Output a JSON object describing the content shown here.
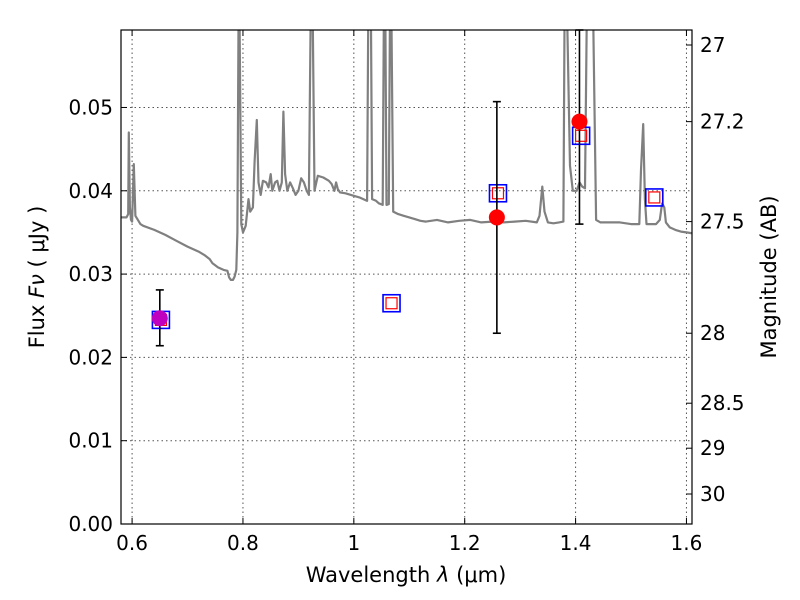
{
  "chart_data": {
    "type": "scatter",
    "xlabel": "Wavelength",
    "xlabel_symbol": "λ",
    "xlabel_unit": "(μm)",
    "ylabel": "Flux",
    "ylabel_symbol": "Fν",
    "ylabel_unit": "( μJy )",
    "y2label": "Magnitude (AB)",
    "xlim": [
      0.58,
      1.61
    ],
    "ylim": [
      0.0,
      0.0593
    ],
    "x_ticks": [
      0.6,
      0.8,
      1.0,
      1.2,
      1.4,
      1.6
    ],
    "x_tick_labels": [
      "0.6",
      "0.8",
      "1",
      "1.2",
      "1.4",
      "1.6"
    ],
    "y_ticks": [
      0.0,
      0.01,
      0.02,
      0.03,
      0.04,
      0.05
    ],
    "y_tick_labels": [
      "0.00",
      "0.01",
      "0.02",
      "0.03",
      "0.04",
      "0.05"
    ],
    "y2_ticks": [
      {
        "flux": 0.0575,
        "label": "27"
      },
      {
        "flux": 0.0483,
        "label": "27.2"
      },
      {
        "flux": 0.0363,
        "label": "27.5"
      },
      {
        "flux": 0.0229,
        "label": "28"
      },
      {
        "flux": 0.0145,
        "label": "28.5"
      },
      {
        "flux": 0.0091,
        "label": "29"
      },
      {
        "flux": 0.0036,
        "label": "30"
      }
    ],
    "grid": true,
    "colors": {
      "model": "#808080",
      "observed": "#ff0000",
      "model_box_outer": "#0000ff",
      "model_box_inner": "#ff0000",
      "combined_marker": "#bf00bf",
      "errorbar": "#000000"
    },
    "series": [
      {
        "type": "line",
        "values": [
          [
            0.58,
            0.0368
          ],
          [
            0.59,
            0.0368
          ],
          [
            0.593,
            0.0372
          ],
          [
            0.594,
            0.047
          ],
          [
            0.596,
            0.038
          ],
          [
            0.598,
            0.0365
          ],
          [
            0.6,
            0.0363
          ],
          [
            0.603,
            0.0432
          ],
          [
            0.606,
            0.037
          ],
          [
            0.615,
            0.036
          ],
          [
            0.62,
            0.0358
          ],
          [
            0.64,
            0.0353
          ],
          [
            0.66,
            0.0347
          ],
          [
            0.68,
            0.034
          ],
          [
            0.7,
            0.0333
          ],
          [
            0.72,
            0.0327
          ],
          [
            0.73,
            0.0323
          ],
          [
            0.74,
            0.0318
          ],
          [
            0.745,
            0.0313
          ],
          [
            0.755,
            0.0308
          ],
          [
            0.765,
            0.0305
          ],
          [
            0.772,
            0.0304
          ],
          [
            0.775,
            0.0296
          ],
          [
            0.778,
            0.0293
          ],
          [
            0.782,
            0.0293
          ],
          [
            0.785,
            0.0297
          ],
          [
            0.788,
            0.0305
          ],
          [
            0.79,
            0.035
          ],
          [
            0.792,
            0.06
          ],
          [
            0.794,
            0.06
          ],
          [
            0.797,
            0.036
          ],
          [
            0.8,
            0.035
          ],
          [
            0.805,
            0.0358
          ],
          [
            0.81,
            0.039
          ],
          [
            0.813,
            0.0375
          ],
          [
            0.818,
            0.038
          ],
          [
            0.821,
            0.0435
          ],
          [
            0.825,
            0.0485
          ],
          [
            0.828,
            0.041
          ],
          [
            0.832,
            0.0395
          ],
          [
            0.836,
            0.0412
          ],
          [
            0.842,
            0.041
          ],
          [
            0.846,
            0.0404
          ],
          [
            0.85,
            0.042
          ],
          [
            0.853,
            0.04
          ],
          [
            0.858,
            0.041
          ],
          [
            0.862,
            0.0412
          ],
          [
            0.866,
            0.04
          ],
          [
            0.87,
            0.041
          ],
          [
            0.873,
            0.0495
          ],
          [
            0.876,
            0.042
          ],
          [
            0.88,
            0.04
          ],
          [
            0.885,
            0.041
          ],
          [
            0.89,
            0.0403
          ],
          [
            0.895,
            0.0395
          ],
          [
            0.9,
            0.04
          ],
          [
            0.905,
            0.0415
          ],
          [
            0.91,
            0.041
          ],
          [
            0.915,
            0.04
          ],
          [
            0.919,
            0.0395
          ],
          [
            0.922,
            0.06
          ],
          [
            0.926,
            0.06
          ],
          [
            0.929,
            0.04
          ],
          [
            0.935,
            0.0418
          ],
          [
            0.945,
            0.0416
          ],
          [
            0.955,
            0.0412
          ],
          [
            0.96,
            0.0408
          ],
          [
            0.965,
            0.04
          ],
          [
            0.968,
            0.041
          ],
          [
            0.971,
            0.0402
          ],
          [
            0.975,
            0.0398
          ],
          [
            0.985,
            0.0397
          ],
          [
            1.0,
            0.0394
          ],
          [
            1.01,
            0.0392
          ],
          [
            1.02,
            0.0389
          ],
          [
            1.024,
            0.0388
          ],
          [
            1.026,
            0.06
          ],
          [
            1.031,
            0.06
          ],
          [
            1.033,
            0.039
          ],
          [
            1.04,
            0.0388
          ],
          [
            1.045,
            0.0385
          ],
          [
            1.052,
            0.0383
          ],
          [
            1.054,
            0.06
          ],
          [
            1.057,
            0.06
          ],
          [
            1.059,
            0.0383
          ],
          [
            1.063,
            0.0384
          ],
          [
            1.065,
            0.06
          ],
          [
            1.068,
            0.06
          ],
          [
            1.071,
            0.0375
          ],
          [
            1.08,
            0.0372
          ],
          [
            1.09,
            0.037
          ],
          [
            1.1,
            0.0368
          ],
          [
            1.11,
            0.0366
          ],
          [
            1.12,
            0.0364
          ],
          [
            1.13,
            0.0363
          ],
          [
            1.15,
            0.0365
          ],
          [
            1.17,
            0.0362
          ],
          [
            1.19,
            0.0364
          ],
          [
            1.21,
            0.0365
          ],
          [
            1.23,
            0.0362
          ],
          [
            1.25,
            0.0363
          ],
          [
            1.27,
            0.0362
          ],
          [
            1.29,
            0.0363
          ],
          [
            1.31,
            0.0364
          ],
          [
            1.33,
            0.0362
          ],
          [
            1.335,
            0.037
          ],
          [
            1.34,
            0.0405
          ],
          [
            1.344,
            0.0375
          ],
          [
            1.35,
            0.0362
          ],
          [
            1.36,
            0.0361
          ],
          [
            1.37,
            0.0362
          ],
          [
            1.378,
            0.0363
          ],
          [
            1.38,
            0.06
          ],
          [
            1.385,
            0.06
          ],
          [
            1.39,
            0.043
          ],
          [
            1.395,
            0.04
          ],
          [
            1.402,
            0.04
          ],
          [
            1.407,
            0.041
          ],
          [
            1.412,
            0.0405
          ],
          [
            1.417,
            0.0403
          ],
          [
            1.42,
            0.06
          ],
          [
            1.432,
            0.06
          ],
          [
            1.437,
            0.0365
          ],
          [
            1.445,
            0.0362
          ],
          [
            1.46,
            0.0362
          ],
          [
            1.48,
            0.0362
          ],
          [
            1.5,
            0.036
          ],
          [
            1.515,
            0.036
          ],
          [
            1.518,
            0.0425
          ],
          [
            1.522,
            0.048
          ],
          [
            1.525,
            0.039
          ],
          [
            1.528,
            0.036
          ],
          [
            1.535,
            0.036
          ],
          [
            1.545,
            0.036
          ],
          [
            1.552,
            0.0365
          ],
          [
            1.556,
            0.0385
          ],
          [
            1.56,
            0.038
          ],
          [
            1.563,
            0.0362
          ],
          [
            1.57,
            0.0356
          ],
          [
            1.58,
            0.0353
          ],
          [
            1.59,
            0.0351
          ],
          [
            1.6,
            0.035
          ],
          [
            1.61,
            0.0349
          ]
        ]
      },
      {
        "type": "errorbar",
        "values": [
          {
            "x": 0.65,
            "y": 0.0247,
            "ylow": 0.0214,
            "yhigh": 0.0281
          },
          {
            "x": 1.258,
            "y": 0.0368,
            "ylow": 0.0229,
            "yhigh": 0.0507
          },
          {
            "x": 1.407,
            "y": 0.0483,
            "ylow": 0.036,
            "yhigh": 0.0593
          }
        ]
      },
      {
        "type": "scatter",
        "marker": "square",
        "values": [
          {
            "x": 0.652,
            "y": 0.0245
          },
          {
            "x": 1.068,
            "y": 0.0265
          },
          {
            "x": 1.26,
            "y": 0.0397
          },
          {
            "x": 1.41,
            "y": 0.0466
          },
          {
            "x": 1.542,
            "y": 0.0392
          }
        ]
      }
    ]
  }
}
